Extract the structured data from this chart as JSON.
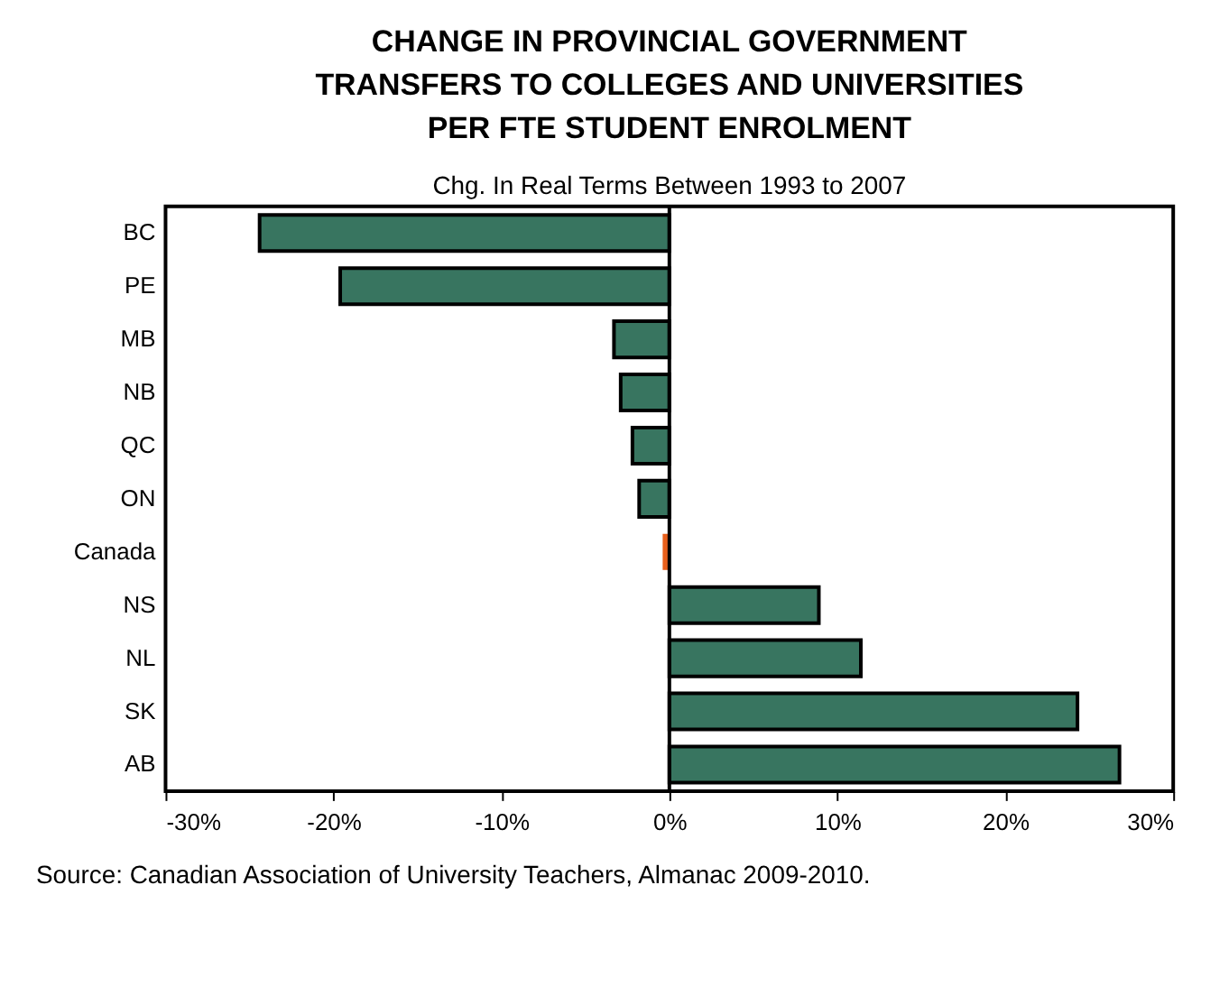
{
  "chart_data": {
    "type": "bar",
    "orientation": "horizontal",
    "title": "CHANGE IN PROVINCIAL GOVERNMENT\nTRANSFERS TO COLLEGES AND UNIVERSITIES\nPER FTE STUDENT ENROLMENT",
    "subtitle": "Chg. In Real Terms Between 1993 to 2007",
    "categories": [
      "BC",
      "PE",
      "MB",
      "NB",
      "QC",
      "ON",
      "Canada",
      "NS",
      "NL",
      "SK",
      "AB"
    ],
    "values": [
      -24.4,
      -19.6,
      -3.3,
      -2.9,
      -2.2,
      -1.8,
      -0.4,
      8.9,
      11.4,
      24.3,
      26.8
    ],
    "colors": [
      "#387560",
      "#387560",
      "#387560",
      "#387560",
      "#387560",
      "#387560",
      "#e8601c",
      "#387560",
      "#387560",
      "#387560",
      "#387560"
    ],
    "xlim": [
      -30,
      30
    ],
    "xticks": [
      {
        "value": -30,
        "label": "-30%"
      },
      {
        "value": -20,
        "label": "-20%"
      },
      {
        "value": -10,
        "label": "-10%"
      },
      {
        "value": 0,
        "label": "0%"
      },
      {
        "value": 10,
        "label": "10%"
      },
      {
        "value": 20,
        "label": "20%"
      },
      {
        "value": 30,
        "label": "30%"
      }
    ],
    "ref_lines": [
      {
        "axis": "x",
        "value": 0,
        "color": "#000000"
      }
    ],
    "grid": false,
    "annotations": [
      "Source: Canadian Association of University Teachers, Almanac 2009-2010."
    ]
  }
}
